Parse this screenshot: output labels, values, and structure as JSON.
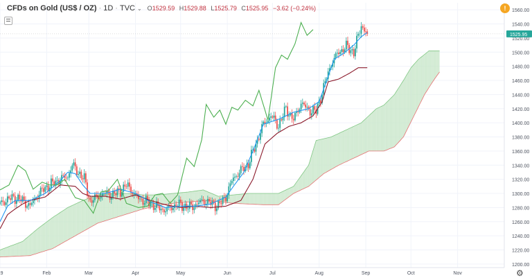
{
  "header": {
    "symbol": "CFDs on Gold (US$ / OZ)",
    "interval": "1D",
    "source": "TVC",
    "open_label": "O",
    "open": "1529.59",
    "high_label": "H",
    "high": "1529.88",
    "low_label": "L",
    "low": "1525.79",
    "close_label": "C",
    "close": "1525.95",
    "change": "−3.62 (−0.24%)"
  },
  "colors": {
    "up": "#26a69a",
    "down": "#ef5350",
    "conversion": "#2196f3",
    "base": "#8b1a2b",
    "lagging": "#4caf50",
    "cloud_bull": "#c8e6c9",
    "cloud_bear": "#f8d0d0",
    "price_label": "#26a69a"
  },
  "chart_data": {
    "type": "candlestick",
    "price_label": "1525.95",
    "ylim": [
      1195,
      1570
    ],
    "yticks": [
      1200,
      1220,
      1240,
      1260,
      1280,
      1300,
      1320,
      1340,
      1360,
      1380,
      1400,
      1420,
      1440,
      1460,
      1480,
      1500,
      1520,
      1540,
      1560
    ],
    "xticks": [
      {
        "label": "'19",
        "day": 0
      },
      {
        "label": "Feb",
        "day": 31
      },
      {
        "label": "Mar",
        "day": 59
      },
      {
        "label": "Apr",
        "day": 90
      },
      {
        "label": "May",
        "day": 120
      },
      {
        "label": "Jun",
        "day": 151
      },
      {
        "label": "Jul",
        "day": 181
      },
      {
        "label": "Aug",
        "day": 212
      },
      {
        "label": "Sep",
        "day": 243
      },
      {
        "label": "Oct",
        "day": 273
      },
      {
        "label": "Nov",
        "day": 304
      }
    ],
    "xlim": [
      0,
      335
    ],
    "price_anchors": [
      [
        0,
        1285
      ],
      [
        5,
        1292
      ],
      [
        10,
        1294
      ],
      [
        15,
        1290
      ],
      [
        20,
        1282
      ],
      [
        25,
        1298
      ],
      [
        30,
        1308
      ],
      [
        35,
        1314
      ],
      [
        40,
        1320
      ],
      [
        45,
        1324
      ],
      [
        48,
        1340
      ],
      [
        52,
        1330
      ],
      [
        56,
        1320
      ],
      [
        60,
        1288
      ],
      [
        65,
        1296
      ],
      [
        70,
        1300
      ],
      [
        75,
        1298
      ],
      [
        80,
        1304
      ],
      [
        85,
        1312
      ],
      [
        90,
        1296
      ],
      [
        95,
        1290
      ],
      [
        100,
        1286
      ],
      [
        105,
        1280
      ],
      [
        110,
        1276
      ],
      [
        115,
        1282
      ],
      [
        120,
        1284
      ],
      [
        125,
        1280
      ],
      [
        130,
        1284
      ],
      [
        135,
        1290
      ],
      [
        140,
        1286
      ],
      [
        145,
        1282
      ],
      [
        150,
        1296
      ],
      [
        155,
        1322
      ],
      [
        160,
        1332
      ],
      [
        165,
        1342
      ],
      [
        170,
        1370
      ],
      [
        175,
        1398
      ],
      [
        180,
        1410
      ],
      [
        185,
        1396
      ],
      [
        190,
        1420
      ],
      [
        195,
        1404
      ],
      [
        200,
        1428
      ],
      [
        205,
        1418
      ],
      [
        210,
        1416
      ],
      [
        215,
        1450
      ],
      [
        220,
        1484
      ],
      [
        225,
        1500
      ],
      [
        230,
        1508
      ],
      [
        235,
        1500
      ],
      [
        240,
        1538
      ],
      [
        244,
        1526
      ]
    ],
    "lagging_anchors": [
      [
        0,
        1305
      ],
      [
        6,
        1312
      ],
      [
        12,
        1340
      ],
      [
        17,
        1332
      ],
      [
        22,
        1306
      ],
      [
        28,
        1316
      ],
      [
        33,
        1312
      ],
      [
        38,
        1312
      ],
      [
        43,
        1320
      ],
      [
        50,
        1294
      ],
      [
        56,
        1290
      ],
      [
        62,
        1272
      ],
      [
        67,
        1302
      ],
      [
        72,
        1304
      ],
      [
        78,
        1320
      ],
      [
        84,
        1286
      ],
      [
        92,
        1280
      ],
      [
        98,
        1282
      ],
      [
        103,
        1298
      ],
      [
        108,
        1300
      ],
      [
        113,
        1286
      ],
      [
        118,
        1298
      ],
      [
        124,
        1350
      ],
      [
        129,
        1338
      ],
      [
        134,
        1376
      ],
      [
        137,
        1426
      ],
      [
        142,
        1408
      ],
      [
        146,
        1418
      ],
      [
        150,
        1398
      ],
      [
        154,
        1422
      ],
      [
        158,
        1418
      ],
      [
        163,
        1432
      ],
      [
        168,
        1424
      ],
      [
        172,
        1446
      ],
      [
        178,
        1404
      ],
      [
        183,
        1478
      ],
      [
        187,
        1496
      ],
      [
        191,
        1490
      ],
      [
        196,
        1512
      ],
      [
        200,
        1542
      ],
      [
        204,
        1524
      ],
      [
        208,
        1532
      ]
    ],
    "base_anchors": [
      [
        0,
        1250
      ],
      [
        5,
        1270
      ],
      [
        10,
        1278
      ],
      [
        15,
        1285
      ],
      [
        20,
        1290
      ],
      [
        30,
        1295
      ],
      [
        40,
        1312
      ],
      [
        50,
        1310
      ],
      [
        55,
        1300
      ],
      [
        60,
        1296
      ],
      [
        70,
        1296
      ],
      [
        80,
        1292
      ],
      [
        90,
        1298
      ],
      [
        100,
        1290
      ],
      [
        110,
        1284
      ],
      [
        120,
        1280
      ],
      [
        130,
        1282
      ],
      [
        140,
        1280
      ],
      [
        150,
        1282
      ],
      [
        160,
        1290
      ],
      [
        168,
        1320
      ],
      [
        176,
        1370
      ],
      [
        184,
        1385
      ],
      [
        192,
        1395
      ],
      [
        200,
        1400
      ],
      [
        208,
        1410
      ],
      [
        214,
        1430
      ],
      [
        218,
        1458
      ],
      [
        225,
        1462
      ],
      [
        232,
        1470
      ],
      [
        238,
        1478
      ],
      [
        244,
        1478
      ]
    ],
    "conversion_anchors": [
      [
        0,
        1260
      ],
      [
        5,
        1282
      ],
      [
        10,
        1290
      ],
      [
        20,
        1290
      ],
      [
        30,
        1300
      ],
      [
        40,
        1318
      ],
      [
        45,
        1330
      ],
      [
        50,
        1328
      ],
      [
        55,
        1312
      ],
      [
        60,
        1300
      ],
      [
        70,
        1300
      ],
      [
        80,
        1306
      ],
      [
        90,
        1300
      ],
      [
        100,
        1288
      ],
      [
        110,
        1280
      ],
      [
        120,
        1282
      ],
      [
        130,
        1282
      ],
      [
        140,
        1285
      ],
      [
        150,
        1295
      ],
      [
        155,
        1310
      ],
      [
        162,
        1330
      ],
      [
        168,
        1360
      ],
      [
        175,
        1398
      ],
      [
        185,
        1405
      ],
      [
        195,
        1415
      ],
      [
        205,
        1420
      ],
      [
        212,
        1430
      ],
      [
        217,
        1460
      ],
      [
        222,
        1490
      ],
      [
        228,
        1498
      ],
      [
        235,
        1510
      ],
      [
        240,
        1522
      ],
      [
        244,
        1528
      ]
    ],
    "span_a_anchors": [
      [
        0,
        1220
      ],
      [
        15,
        1232
      ],
      [
        25,
        1250
      ],
      [
        35,
        1266
      ],
      [
        45,
        1280
      ],
      [
        55,
        1290
      ],
      [
        65,
        1298
      ],
      [
        75,
        1300
      ],
      [
        85,
        1300
      ],
      [
        95,
        1298
      ],
      [
        105,
        1298
      ],
      [
        115,
        1300
      ],
      [
        125,
        1302
      ],
      [
        135,
        1305
      ],
      [
        145,
        1296
      ],
      [
        155,
        1298
      ],
      [
        165,
        1300
      ],
      [
        175,
        1300
      ],
      [
        185,
        1300
      ],
      [
        195,
        1310
      ],
      [
        205,
        1340
      ],
      [
        210,
        1375
      ],
      [
        220,
        1380
      ],
      [
        230,
        1390
      ],
      [
        240,
        1400
      ],
      [
        250,
        1420
      ],
      [
        255,
        1425
      ],
      [
        262,
        1440
      ],
      [
        268,
        1460
      ],
      [
        273,
        1478
      ],
      [
        278,
        1490
      ],
      [
        285,
        1502
      ],
      [
        292,
        1502
      ]
    ],
    "span_b_anchors": [
      [
        0,
        1210
      ],
      [
        20,
        1212
      ],
      [
        35,
        1222
      ],
      [
        50,
        1240
      ],
      [
        65,
        1258
      ],
      [
        80,
        1268
      ],
      [
        95,
        1278
      ],
      [
        110,
        1285
      ],
      [
        125,
        1288
      ],
      [
        140,
        1290
      ],
      [
        155,
        1286
      ],
      [
        165,
        1285
      ],
      [
        175,
        1284
      ],
      [
        185,
        1284
      ],
      [
        195,
        1300
      ],
      [
        205,
        1310
      ],
      [
        215,
        1328
      ],
      [
        225,
        1340
      ],
      [
        235,
        1350
      ],
      [
        245,
        1360
      ],
      [
        255,
        1360
      ],
      [
        262,
        1366
      ],
      [
        268,
        1380
      ],
      [
        275,
        1410
      ],
      [
        282,
        1440
      ],
      [
        288,
        1460
      ],
      [
        292,
        1472
      ]
    ]
  },
  "toolbar": {
    "settings_icon": "gear-icon",
    "alert_badge": "alert-badge"
  }
}
